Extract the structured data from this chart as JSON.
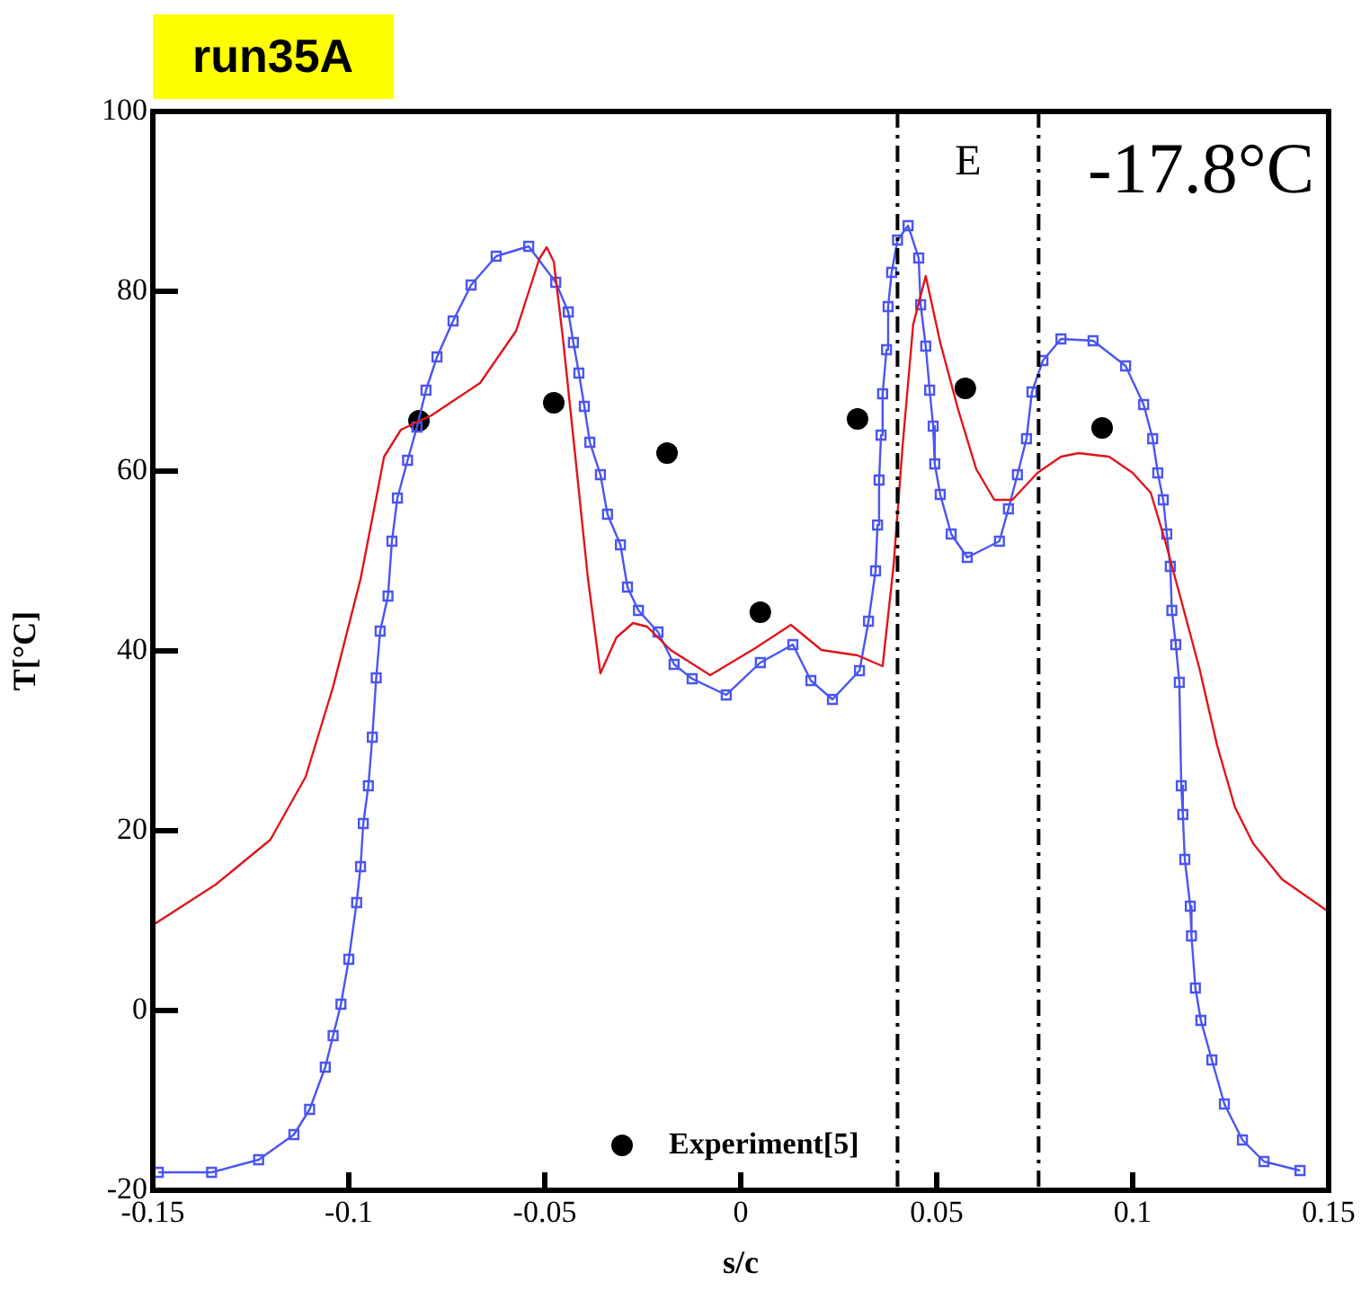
{
  "chart_data": {
    "type": "line",
    "title": "run35A",
    "xlabel": "s/c",
    "ylabel": "T[°C]",
    "xlim": [
      -0.15,
      0.15
    ],
    "xticks": [
      -0.15,
      -0.1,
      -0.05,
      0,
      0.05,
      0.1,
      0.15
    ],
    "ylim": [
      -20,
      100
    ],
    "yticks": [
      -20,
      0,
      20,
      40,
      60,
      80,
      100
    ],
    "grid": false,
    "legend": "bottom",
    "ref_lines": [
      {
        "axis": "x",
        "value": 0.04,
        "color": "#000000",
        "line_style": "dashed"
      },
      {
        "axis": "x",
        "value": 0.076,
        "color": "#000000",
        "line_style": "dashed"
      }
    ],
    "annotations": [
      "E",
      "-17.8°C"
    ],
    "series": [
      {
        "color": "#e0151b",
        "marker": "none",
        "x": [
          -0.15,
          -0.134,
          -0.12,
          -0.111,
          -0.104,
          -0.097,
          -0.093,
          -0.091,
          -0.0867,
          -0.0789,
          -0.0665,
          -0.0573,
          -0.0514,
          -0.0495,
          -0.0477,
          -0.0454,
          -0.0422,
          -0.039,
          -0.0358,
          -0.0317,
          -0.0275,
          -0.0239,
          -0.0179,
          -0.0078,
          -0.0032,
          0.0037,
          0.0128,
          0.0206,
          0.0298,
          0.0362,
          0.039,
          0.0413,
          0.044,
          0.0472,
          0.0509,
          0.0555,
          0.0601,
          0.0647,
          0.0693,
          0.0757,
          0.0817,
          0.0862,
          0.094,
          0.1,
          0.1046,
          0.1083,
          0.1124,
          0.117,
          0.1216,
          0.1261,
          0.1307,
          0.1381,
          0.1486,
          0.15
        ],
        "values": [
          9.5,
          14,
          19,
          26,
          36,
          48,
          57,
          61.6,
          64.6,
          66.2,
          69.8,
          75.6,
          83.6,
          84.9,
          83.3,
          74.9,
          61.6,
          48.1,
          37.5,
          41.5,
          43.1,
          42.7,
          40.1,
          37.3,
          38.5,
          40.3,
          42.9,
          40.1,
          39.5,
          38.3,
          49.5,
          62.8,
          76.3,
          81.7,
          74.3,
          66.8,
          60.2,
          56.8,
          56.8,
          59.8,
          61.6,
          62,
          61.6,
          59.8,
          57.6,
          52.2,
          45.6,
          38.1,
          29.4,
          22.6,
          18.6,
          14.6,
          11.4,
          11
        ]
      },
      {
        "color": "#4a55f0",
        "marker": "square",
        "x": [
          -0.1486,
          -0.135,
          -0.123,
          -0.114,
          -0.11,
          -0.106,
          -0.104,
          -0.102,
          -0.1,
          -0.098,
          -0.097,
          -0.0963,
          -0.095,
          -0.094,
          -0.093,
          -0.092,
          -0.09,
          -0.089,
          -0.0876,
          -0.085,
          -0.0826,
          -0.0803,
          -0.0775,
          -0.0734,
          -0.0688,
          -0.0624,
          -0.0541,
          -0.0472,
          -0.044,
          -0.0427,
          -0.0413,
          -0.0399,
          -0.0385,
          -0.0358,
          -0.034,
          -0.0307,
          -0.0289,
          -0.0261,
          -0.0211,
          -0.017,
          -0.0124,
          -0.0037,
          0.005,
          0.0133,
          0.0179,
          0.0234,
          0.0303,
          0.0326,
          0.0344,
          0.0349,
          0.0353,
          0.0358,
          0.0362,
          0.0372,
          0.0376,
          0.0385,
          0.04,
          0.0427,
          0.0454,
          0.0459,
          0.0472,
          0.0482,
          0.0491,
          0.0495,
          0.0509,
          0.0537,
          0.0578,
          0.066,
          0.0683,
          0.0706,
          0.0729,
          0.0743,
          0.0771,
          0.0817,
          0.0899,
          0.0982,
          0.1028,
          0.1051,
          0.1064,
          0.1078,
          0.1087,
          0.1096,
          0.11,
          0.111,
          0.1119,
          0.1124,
          0.1128,
          0.1133,
          0.1147,
          0.115,
          0.116,
          0.1174,
          0.1202,
          0.1234,
          0.128,
          0.1335,
          0.1427
        ],
        "values": [
          -18,
          -18,
          -16.6,
          -13.8,
          -11,
          -6.3,
          -2.8,
          0.7,
          5.7,
          12,
          16,
          20.8,
          25,
          30.4,
          37,
          42.2,
          46.1,
          52.2,
          57,
          61.2,
          64.9,
          69,
          72.7,
          76.7,
          80.7,
          83.9,
          85,
          81,
          77.7,
          74.3,
          70.9,
          67.2,
          63.2,
          59.6,
          55.2,
          51.8,
          47.1,
          44.5,
          42.1,
          38.5,
          36.9,
          35.1,
          38.7,
          40.7,
          36.7,
          34.6,
          37.8,
          43.3,
          48.9,
          54,
          59,
          64,
          68.6,
          73.5,
          78.3,
          82.1,
          85.7,
          87.3,
          83.7,
          78.5,
          73.9,
          69,
          65,
          60.8,
          57.4,
          53,
          50.4,
          52.2,
          55.8,
          59.6,
          63.6,
          68.8,
          72.3,
          74.7,
          74.5,
          71.7,
          67.4,
          63.6,
          59.8,
          56.8,
          53,
          49.4,
          44.5,
          40.7,
          36.5,
          25,
          21.8,
          16.8,
          11.6,
          8.3,
          2.5,
          -1.1,
          -5.5,
          -10.4,
          -14.4,
          -16.8,
          -17.8
        ]
      },
      {
        "type": "scatter",
        "name": "Experiment[5]",
        "color": "#000000",
        "marker": "circle",
        "x": [
          -0.0821,
          -0.0477,
          -0.0188,
          0.005,
          0.0298,
          0.0573,
          0.0922
        ],
        "values": [
          65.6,
          67.6,
          62,
          44.3,
          65.8,
          69.2,
          64.8
        ]
      }
    ]
  }
}
